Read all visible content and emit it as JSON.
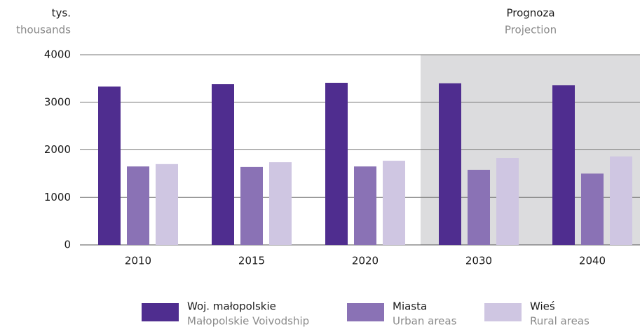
{
  "chart_data": {
    "type": "bar",
    "y_label": "tys.",
    "y_label_en": "thousands",
    "annotation": "Prognoza",
    "annotation_en": "Projection",
    "categories": [
      "2010",
      "2015",
      "2020",
      "2030",
      "2040"
    ],
    "series": [
      {
        "name": "Woj. małopolskie",
        "name_en": "Małopolskie Voivodship",
        "color": "#4f2d8f",
        "values": [
          3330,
          3380,
          3410,
          3400,
          3360
        ]
      },
      {
        "name": "Miasta",
        "name_en": "Urban areas",
        "color": "#8a72b5",
        "values": [
          1650,
          1640,
          1650,
          1580,
          1500
        ]
      },
      {
        "name": "Wieś",
        "name_en": "Rural areas",
        "color": "#cfc6e2",
        "values": [
          1700,
          1740,
          1770,
          1830,
          1860
        ]
      }
    ],
    "ylim": [
      0,
      4000
    ],
    "yticks": [
      0,
      1000,
      2000,
      3000,
      4000
    ],
    "grid": true
  }
}
